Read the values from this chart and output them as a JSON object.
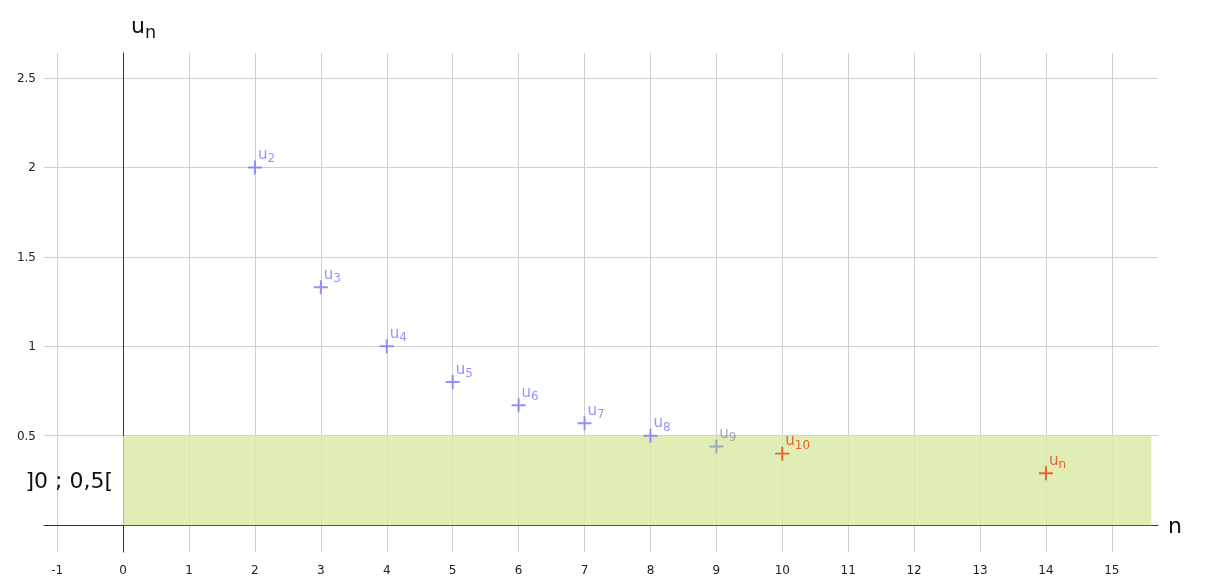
{
  "chart_data": {
    "type": "scatter",
    "xlabel": "n",
    "ylabel": "u$_{n}$",
    "xlim": [
      -1.2,
      15.7
    ],
    "ylim": [
      -0.15,
      2.64
    ],
    "xticks": [
      -1,
      0,
      1,
      2,
      3,
      4,
      5,
      6,
      7,
      8,
      9,
      10,
      11,
      12,
      13,
      14,
      15
    ],
    "yticks": [
      0.5,
      1,
      1.5,
      2,
      2.5
    ],
    "grid": true,
    "marker": "cross",
    "series": [
      {
        "color": "#7878ff",
        "colors": [
          "#7878ff",
          "#7878ff",
          "#7878ff",
          "#7878ff",
          "#7878ff",
          "#7878ff",
          "#7878ff",
          "#8a96b8"
        ],
        "x": [
          2,
          3,
          4,
          5,
          6,
          7,
          8,
          9
        ],
        "values": [
          2,
          1.33,
          1,
          0.8,
          0.67,
          0.57,
          0.5,
          0.44
        ]
      },
      {
        "color": "#e8400c",
        "x": [
          10,
          14
        ],
        "values": [
          0.4,
          0.29
        ]
      }
    ],
    "annotations": [
      {
        "text": "u$_{2}$",
        "x": 2,
        "y": 2
      },
      {
        "text": "u$_{3}$",
        "x": 3,
        "y": 1.33
      },
      {
        "text": "u$_{4}$",
        "x": 4,
        "y": 1
      },
      {
        "text": "u$_{5}$",
        "x": 5,
        "y": 0.8
      },
      {
        "text": "u$_{6}$",
        "x": 6,
        "y": 0.67
      },
      {
        "text": "u$_{7}$",
        "x": 7,
        "y": 0.57
      },
      {
        "text": "u$_{8}$",
        "x": 8,
        "y": 0.5
      },
      {
        "text": "u$_{9}$",
        "x": 9,
        "y": 0.44
      },
      {
        "text": "u$_{10}$",
        "x": 10,
        "y": 0.4
      },
      {
        "text": "u$_{n}$",
        "x": 14,
        "y": 0.29
      }
    ],
    "bands": [
      {
        "axis": "y",
        "from": 0,
        "to": 0.5,
        "label": "]0 ; 0,5[",
        "color": "#dbeaa8"
      }
    ]
  }
}
